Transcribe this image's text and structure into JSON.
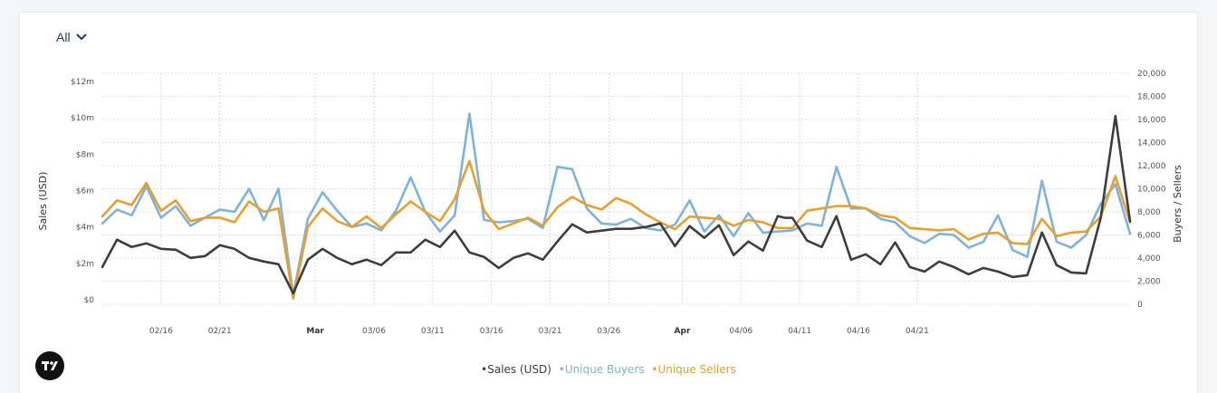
{
  "filter": {
    "label": "All",
    "icon": "chevron-down-icon"
  },
  "colors": {
    "sales": "#3d3d3d",
    "buyers": "#7fb3dc",
    "sellers": "#e5a02e",
    "grid": "#dddddd"
  },
  "legend": {
    "sales": "•Sales (USD)",
    "buyers": "•Unique Buyers",
    "sellers": "•Unique Sellers"
  },
  "logo": {
    "icon": "tradingview-logo-icon"
  },
  "chart_data": {
    "type": "line",
    "grid": true,
    "legend_position": "bottom-center",
    "x_ticks": [
      {
        "label": "02/16",
        "i": 8,
        "bold": false
      },
      {
        "label": "02/21",
        "i": 16,
        "bold": false
      },
      {
        "label": "Mar",
        "i": 29,
        "bold": true
      },
      {
        "label": "03/06",
        "i": 37,
        "bold": false
      },
      {
        "label": "03/11",
        "i": 45,
        "bold": false
      },
      {
        "label": "03/16",
        "i": 53,
        "bold": false
      },
      {
        "label": "03/21",
        "i": 61,
        "bold": false
      },
      {
        "label": "03/26",
        "i": 69,
        "bold": false
      },
      {
        "label": "Apr",
        "i": 79,
        "bold": true
      },
      {
        "label": "04/06",
        "i": 87,
        "bold": false
      },
      {
        "label": "04/11",
        "i": 95,
        "bold": false
      },
      {
        "label": "04/16",
        "i": 103,
        "bold": false
      },
      {
        "label": "04/21",
        "i": 111,
        "bold": false
      }
    ],
    "y_left": {
      "label": "Sales (USD)",
      "ylim": [
        0,
        13000000
      ],
      "ticks": [
        {
          "v": 0,
          "label": "$0"
        },
        {
          "v": 2000000,
          "label": "$2m"
        },
        {
          "v": 4000000,
          "label": "$4m"
        },
        {
          "v": 6000000,
          "label": "$6m"
        },
        {
          "v": 8000000,
          "label": "$8m"
        },
        {
          "v": 10000000,
          "label": "$10m"
        },
        {
          "v": 12000000,
          "label": "$12m"
        }
      ]
    },
    "y_right": {
      "label": "Buyers / Sellers",
      "ylim": [
        0,
        20000
      ],
      "ticks": [
        {
          "v": 0,
          "label": "0"
        },
        {
          "v": 2000,
          "label": "2,000"
        },
        {
          "v": 4000,
          "label": "4,000"
        },
        {
          "v": 6000,
          "label": "6,000"
        },
        {
          "v": 8000,
          "label": "8,000"
        },
        {
          "v": 10000,
          "label": "10,000"
        },
        {
          "v": 12000,
          "label": "12,000"
        },
        {
          "v": 14000,
          "label": "14,000"
        },
        {
          "v": 16000,
          "label": "16,000"
        },
        {
          "v": 18000,
          "label": "18,000"
        },
        {
          "v": 20000,
          "label": "20,000"
        }
      ]
    },
    "series": [
      {
        "name": "Sales (USD)",
        "axis": "left",
        "points": [
          [
            0,
            1.8
          ],
          [
            2,
            3.3
          ],
          [
            4,
            2.9
          ],
          [
            6,
            3.1
          ],
          [
            8,
            2.8
          ],
          [
            10,
            2.75
          ],
          [
            12,
            2.3
          ],
          [
            14,
            2.4
          ],
          [
            16,
            3.0
          ],
          [
            18,
            2.8
          ],
          [
            20,
            2.3
          ],
          [
            22,
            2.1
          ],
          [
            24,
            1.95
          ],
          [
            26,
            0.35
          ],
          [
            28,
            2.2
          ],
          [
            30,
            2.8
          ],
          [
            32,
            2.3
          ],
          [
            34,
            1.95
          ],
          [
            36,
            2.2
          ],
          [
            38,
            1.9
          ],
          [
            40,
            2.6
          ],
          [
            42,
            2.6
          ],
          [
            44,
            3.3
          ],
          [
            46,
            2.9
          ],
          [
            48,
            3.8
          ],
          [
            50,
            2.6
          ],
          [
            52,
            2.35
          ],
          [
            54,
            1.75
          ],
          [
            56,
            2.3
          ],
          [
            58,
            2.55
          ],
          [
            60,
            2.2
          ],
          [
            62,
            3.2
          ],
          [
            64,
            4.15
          ],
          [
            66,
            3.7
          ],
          [
            68,
            3.8
          ],
          [
            70,
            3.9
          ],
          [
            72,
            3.9
          ],
          [
            74,
            4.0
          ],
          [
            76,
            4.2
          ],
          [
            78,
            2.95
          ],
          [
            80,
            4.05
          ],
          [
            82,
            3.4
          ],
          [
            84,
            4.1
          ],
          [
            86,
            2.45
          ],
          [
            88,
            3.2
          ],
          [
            90,
            2.7
          ],
          [
            92,
            4.6
          ],
          [
            93,
            4.5
          ],
          [
            94,
            4.5
          ],
          [
            96,
            3.25
          ],
          [
            98,
            2.9
          ],
          [
            100,
            4.6
          ],
          [
            102,
            2.2
          ],
          [
            104,
            2.5
          ],
          [
            106,
            1.95
          ],
          [
            108,
            3.15
          ],
          [
            110,
            1.8
          ],
          [
            112,
            1.55
          ],
          [
            114,
            2.1
          ],
          [
            116,
            1.8
          ],
          [
            118,
            1.4
          ],
          [
            120,
            1.75
          ],
          [
            122,
            1.55
          ],
          [
            124,
            1.25
          ],
          [
            126,
            1.35
          ],
          [
            128,
            3.7
          ],
          [
            130,
            1.9
          ],
          [
            132,
            1.5
          ],
          [
            134,
            1.45
          ],
          [
            136,
            4.5
          ],
          [
            138,
            10.1
          ],
          [
            140,
            4.3
          ]
        ]
      },
      {
        "name": "Unique Buyers",
        "axis": "right",
        "points": [
          [
            0,
            7000
          ],
          [
            2,
            8200
          ],
          [
            4,
            7700
          ],
          [
            6,
            10200
          ],
          [
            8,
            7500
          ],
          [
            10,
            8500
          ],
          [
            12,
            6800
          ],
          [
            14,
            7500
          ],
          [
            16,
            8200
          ],
          [
            18,
            8000
          ],
          [
            20,
            10000
          ],
          [
            22,
            7300
          ],
          [
            24,
            10000
          ],
          [
            26,
            800
          ],
          [
            28,
            7400
          ],
          [
            30,
            9700
          ],
          [
            32,
            8100
          ],
          [
            34,
            6700
          ],
          [
            36,
            7000
          ],
          [
            38,
            6400
          ],
          [
            40,
            8100
          ],
          [
            42,
            11000
          ],
          [
            44,
            8000
          ],
          [
            46,
            6300
          ],
          [
            48,
            7700
          ],
          [
            50,
            16500
          ],
          [
            52,
            7300
          ],
          [
            54,
            7100
          ],
          [
            56,
            7200
          ],
          [
            58,
            7400
          ],
          [
            60,
            6600
          ],
          [
            62,
            11900
          ],
          [
            64,
            11700
          ],
          [
            66,
            8300
          ],
          [
            68,
            7000
          ],
          [
            70,
            6900
          ],
          [
            72,
            7400
          ],
          [
            74,
            6600
          ],
          [
            76,
            6400
          ],
          [
            78,
            6900
          ],
          [
            80,
            9000
          ],
          [
            82,
            6300
          ],
          [
            84,
            7700
          ],
          [
            86,
            5900
          ],
          [
            88,
            7900
          ],
          [
            90,
            6200
          ],
          [
            92,
            6300
          ],
          [
            94,
            6400
          ],
          [
            96,
            7000
          ],
          [
            98,
            6800
          ],
          [
            100,
            11900
          ],
          [
            102,
            8300
          ],
          [
            104,
            8300
          ],
          [
            106,
            7400
          ],
          [
            108,
            7100
          ],
          [
            110,
            5900
          ],
          [
            112,
            5300
          ],
          [
            114,
            6100
          ],
          [
            116,
            6000
          ],
          [
            118,
            4900
          ],
          [
            120,
            5400
          ],
          [
            122,
            7700
          ],
          [
            124,
            4700
          ],
          [
            126,
            4100
          ],
          [
            128,
            10700
          ],
          [
            130,
            5400
          ],
          [
            132,
            4900
          ],
          [
            134,
            6000
          ],
          [
            136,
            8700
          ],
          [
            138,
            10400
          ],
          [
            140,
            6100
          ]
        ]
      },
      {
        "name": "Unique Sellers",
        "axis": "right",
        "points": [
          [
            0,
            7600
          ],
          [
            2,
            9000
          ],
          [
            4,
            8600
          ],
          [
            6,
            10500
          ],
          [
            8,
            8100
          ],
          [
            10,
            9000
          ],
          [
            12,
            7200
          ],
          [
            14,
            7500
          ],
          [
            16,
            7500
          ],
          [
            18,
            7100
          ],
          [
            20,
            8900
          ],
          [
            22,
            8000
          ],
          [
            24,
            8300
          ],
          [
            26,
            500
          ],
          [
            28,
            6700
          ],
          [
            30,
            8300
          ],
          [
            32,
            7200
          ],
          [
            34,
            6700
          ],
          [
            36,
            7600
          ],
          [
            38,
            6600
          ],
          [
            40,
            7800
          ],
          [
            42,
            8900
          ],
          [
            44,
            8000
          ],
          [
            46,
            7200
          ],
          [
            48,
            9100
          ],
          [
            50,
            12400
          ],
          [
            52,
            8100
          ],
          [
            54,
            6500
          ],
          [
            56,
            7000
          ],
          [
            58,
            7500
          ],
          [
            60,
            6800
          ],
          [
            62,
            8400
          ],
          [
            64,
            9300
          ],
          [
            66,
            8600
          ],
          [
            68,
            8200
          ],
          [
            70,
            9200
          ],
          [
            72,
            8700
          ],
          [
            74,
            7800
          ],
          [
            76,
            7100
          ],
          [
            78,
            6500
          ],
          [
            80,
            7600
          ],
          [
            82,
            7500
          ],
          [
            84,
            7400
          ],
          [
            86,
            6800
          ],
          [
            88,
            7300
          ],
          [
            90,
            7100
          ],
          [
            92,
            6600
          ],
          [
            94,
            6600
          ],
          [
            96,
            8100
          ],
          [
            98,
            8300
          ],
          [
            100,
            8500
          ],
          [
            102,
            8500
          ],
          [
            104,
            8300
          ],
          [
            106,
            7700
          ],
          [
            108,
            7500
          ],
          [
            110,
            6600
          ],
          [
            112,
            6500
          ],
          [
            114,
            6400
          ],
          [
            116,
            6500
          ],
          [
            118,
            5600
          ],
          [
            120,
            6100
          ],
          [
            122,
            6200
          ],
          [
            124,
            5300
          ],
          [
            126,
            5200
          ],
          [
            128,
            7400
          ],
          [
            130,
            5900
          ],
          [
            132,
            6200
          ],
          [
            134,
            6300
          ],
          [
            136,
            7600
          ],
          [
            138,
            11100
          ],
          [
            140,
            7100
          ]
        ]
      }
    ]
  }
}
